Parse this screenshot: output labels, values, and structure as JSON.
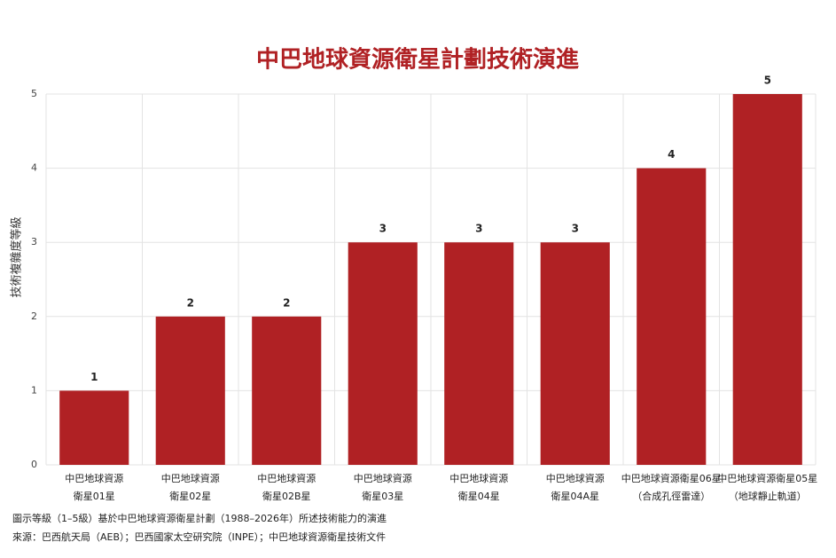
{
  "chart_data": {
    "type": "bar",
    "title": "中巴地球資源衛星計劃技術演進",
    "y_label": "技術複雜度等級",
    "categories": [
      [
        "中巴地球資源",
        "衛星01星"
      ],
      [
        "中巴地球資源",
        "衛星02星"
      ],
      [
        "中巴地球資源",
        "衛星02B星"
      ],
      [
        "中巴地球資源",
        "衛星03星"
      ],
      [
        "中巴地球資源",
        "衛星04星"
      ],
      [
        "中巴地球資源",
        "衛星04A星"
      ],
      [
        "中巴地球資源衛星06星",
        "（合成孔徑雷達）"
      ],
      [
        "中巴地球資源衛星05星",
        "（地球靜止軌道）"
      ]
    ],
    "values": [
      1,
      2,
      2,
      3,
      3,
      3,
      4,
      5
    ],
    "color": "#b02124",
    "ylim": [
      0,
      5
    ],
    "yticks": [
      0,
      1,
      2,
      3,
      4,
      5
    ],
    "grid": true,
    "notes": [
      "圖示等級（1–5級）基於中巴地球資源衛星計劃（1988–2026年）所述技術能力的演進",
      "來源：巴西航天局（AEB）；巴西國家太空研究院（INPE）；中巴地球資源衛星技術文件"
    ]
  }
}
